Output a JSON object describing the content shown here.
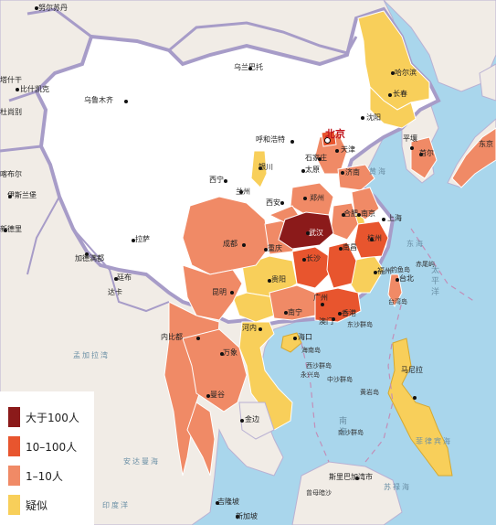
{
  "legend": {
    "items": [
      {
        "label": "大于100人",
        "color": "#8b1a1a"
      },
      {
        "label": "10–100人",
        "color": "#e8552e"
      },
      {
        "label": "1–10人",
        "color": "#f08a66"
      },
      {
        "label": "疑似",
        "color": "#f8cf5a"
      }
    ]
  },
  "colors": {
    "sea": "#a9d6ec",
    "land": "#ffffff",
    "foreign": "#f1ece6",
    "border": "#a79cc8"
  },
  "labels": {
    "nuersu": "努尔苏丹",
    "ulaanbaatar": "乌兰巴托",
    "bishkek": "比什凯克",
    "urumqi": "乌鲁木齐",
    "harbin": "哈尔滨",
    "changchun": "长春",
    "shenyang": "沈阳",
    "pyongyang": "平壤",
    "seoul": "首尔",
    "tokyo": "东京",
    "hohhot": "呼和浩特",
    "beijing": "北京",
    "tianjin": "天津",
    "shijiazhuang": "石家庄",
    "taiyuan": "太原",
    "jinan": "济南",
    "yinchuan": "银川",
    "xining": "西宁",
    "lanzhou": "兰州",
    "zhengzhou": "郑州",
    "xian": "西安",
    "hefei": "合肥",
    "nanjing": "南京",
    "shanghai": "上海",
    "wuhan": "武汉",
    "chengdu": "成都",
    "chongqing": "重庆",
    "changsha": "长沙",
    "nanchang": "南昌",
    "hangzhou": "杭州",
    "fuzhou": "福州",
    "taipei": "台北",
    "lhasa": "拉萨",
    "guiyang": "贵阳",
    "kunming": "昆明",
    "nanning": "南宁",
    "guangzhou": "广州",
    "macau": "澳门",
    "hongkong": "香港",
    "haikou": "海口",
    "hanoi": "河内",
    "vientiane": "万象",
    "bangkok": "曼谷",
    "phnompenh": "金边",
    "naypyidaw": "内比都",
    "thimphu": "廷布",
    "kathmandu": "加德满都",
    "dhaka": "达卡",
    "newdelhi": "新德里",
    "islamabad": "伊斯兰堡",
    "kabul": "喀布尔",
    "dushanbe": "杜尚别",
    "tashkent": "塔什干",
    "kualalumpur": "吉隆坡",
    "singapore": "新加坡",
    "bandar": "斯里巴加湾市",
    "yellowsea": "黄海",
    "eastsea": "东海",
    "taiwan": "台湾岛",
    "diaoyu": "钓鱼岛",
    "chiwei": "赤尾屿",
    "dongsha": "东沙群岛",
    "hainan": "海南岛",
    "xisha": "西沙群岛",
    "yongxing": "永兴岛",
    "zhongsha": "中沙群岛",
    "huangyan": "黄岩岛",
    "nansha": "南沙群岛",
    "zengmu": "曾母暗沙",
    "bengal": "孟加拉湾",
    "andaman": "安达曼海",
    "indianocean": "印度洋",
    "philippinesea": "菲律宾海",
    "manila": "马尼拉",
    "southchinasea": "南海",
    "sulu": "苏禄海",
    "pacific": "太平洋"
  }
}
